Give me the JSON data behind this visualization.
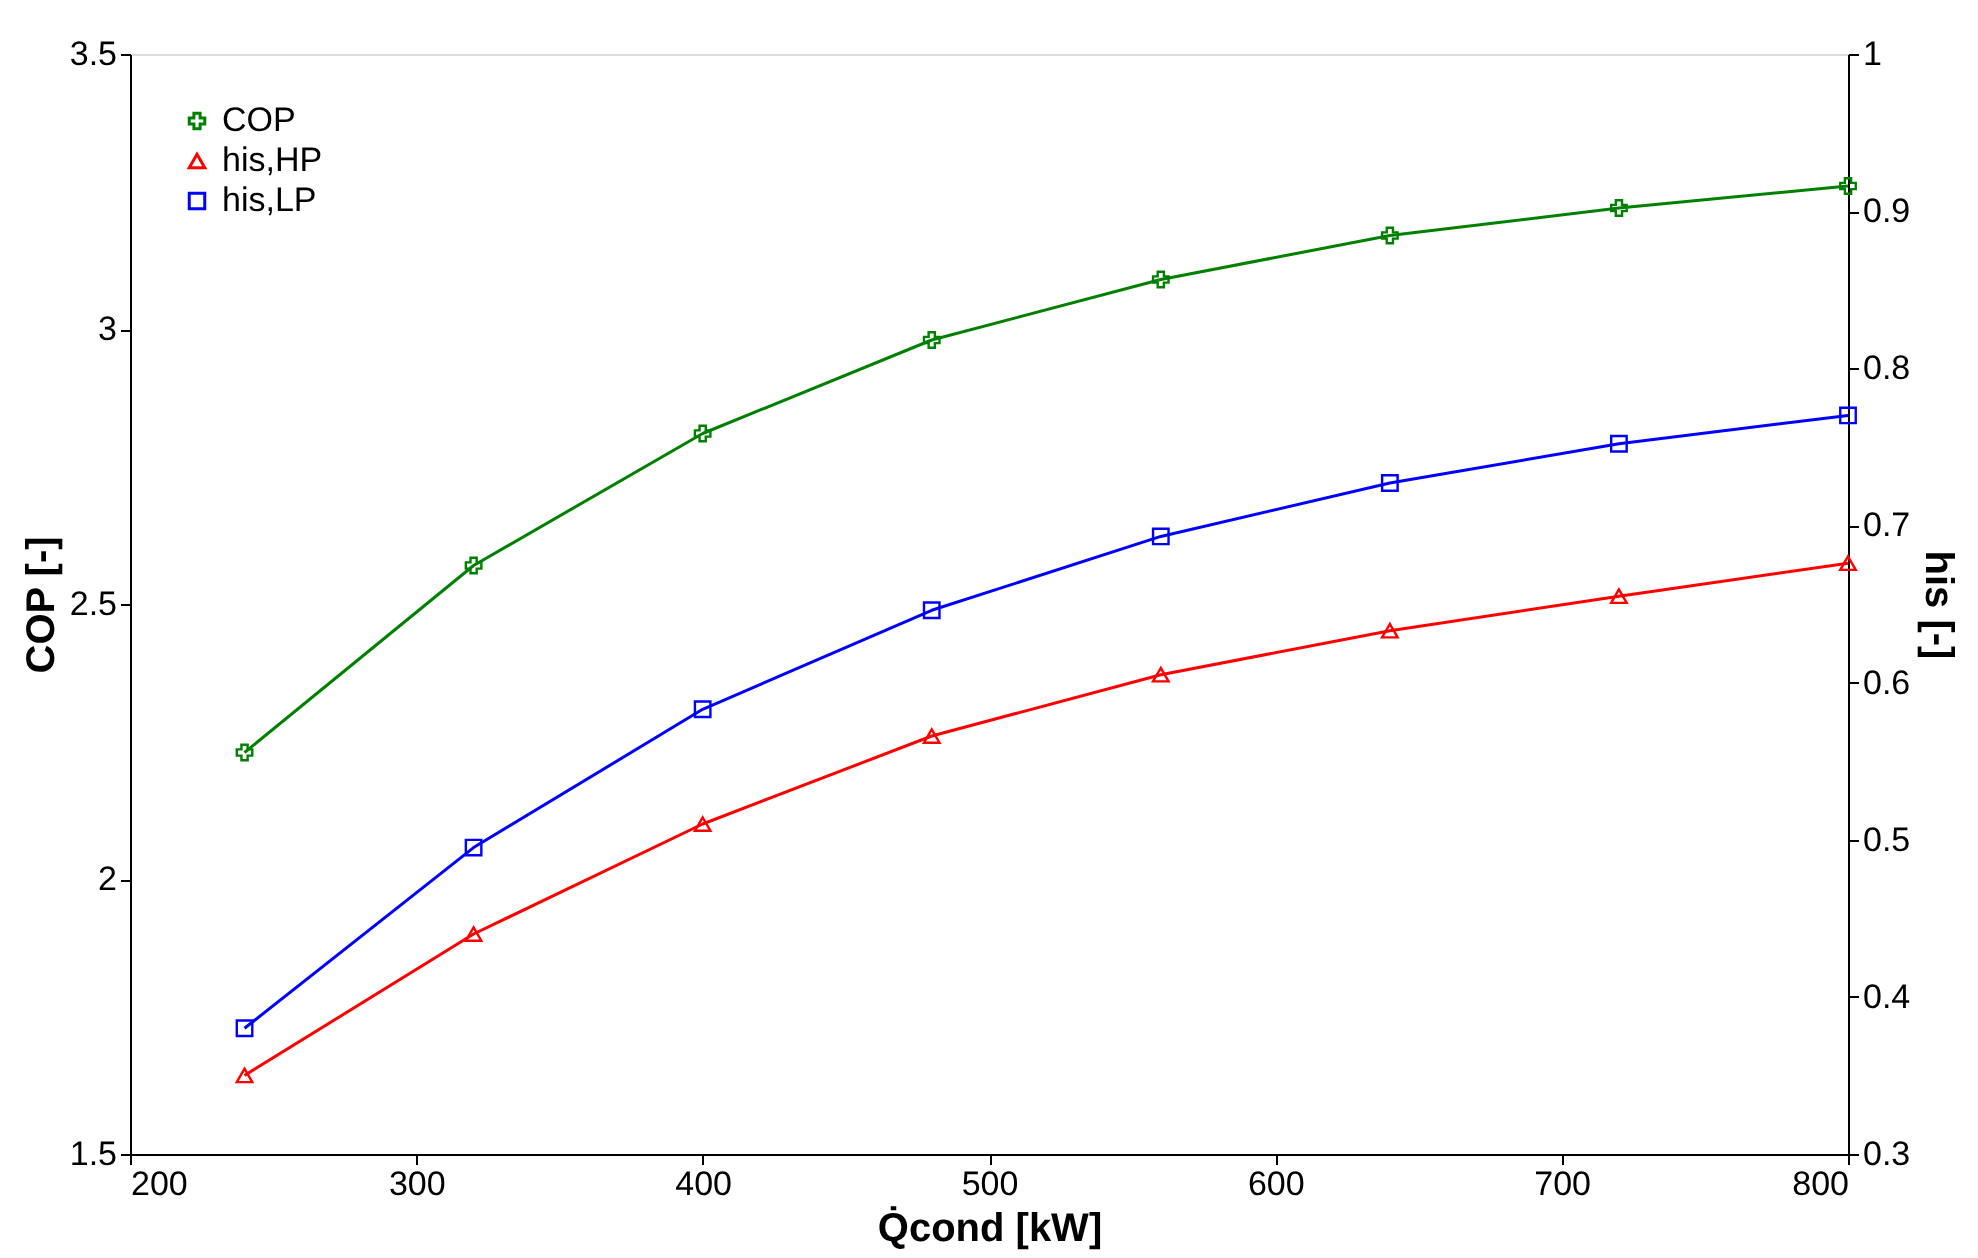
{
  "chart_data": {
    "type": "line",
    "xlabel": "Q̇cond  [kW]",
    "ylabel": "COP  [-]",
    "y2label": "his  [-]",
    "x": [
      240,
      320,
      400,
      480,
      560,
      640,
      720,
      800
    ],
    "series": [
      {
        "name": "COP",
        "color": "#008000",
        "marker": "cross",
        "values": [
          2.23,
          2.57,
          2.81,
          2.98,
          3.09,
          3.17,
          3.22,
          3.26
        ]
      },
      {
        "name": "his,HP",
        "color": "#ff0000",
        "marker": "triangle",
        "axis": "y2",
        "values": [
          0.35,
          0.44,
          0.51,
          0.566,
          0.605,
          0.633,
          0.655,
          0.676
        ]
      },
      {
        "name": "his,LP",
        "color": "#0000ff",
        "marker": "square",
        "axis": "y2",
        "values": [
          0.38,
          0.495,
          0.583,
          0.646,
          0.693,
          0.727,
          0.752,
          0.77
        ]
      }
    ],
    "xlim": [
      200,
      800
    ],
    "xticks": [
      200,
      300,
      400,
      500,
      600,
      700,
      800
    ],
    "ylim": [
      1.5,
      3.5
    ],
    "yticks": [
      1.5,
      2,
      2.5,
      3,
      3.5
    ],
    "y2lim": [
      0.3,
      1
    ],
    "y2ticks": [
      0.3,
      0.4,
      0.5,
      0.6,
      0.7,
      0.8,
      0.9,
      1
    ],
    "grid": false,
    "legend": "top left",
    "line_style": "solid"
  }
}
